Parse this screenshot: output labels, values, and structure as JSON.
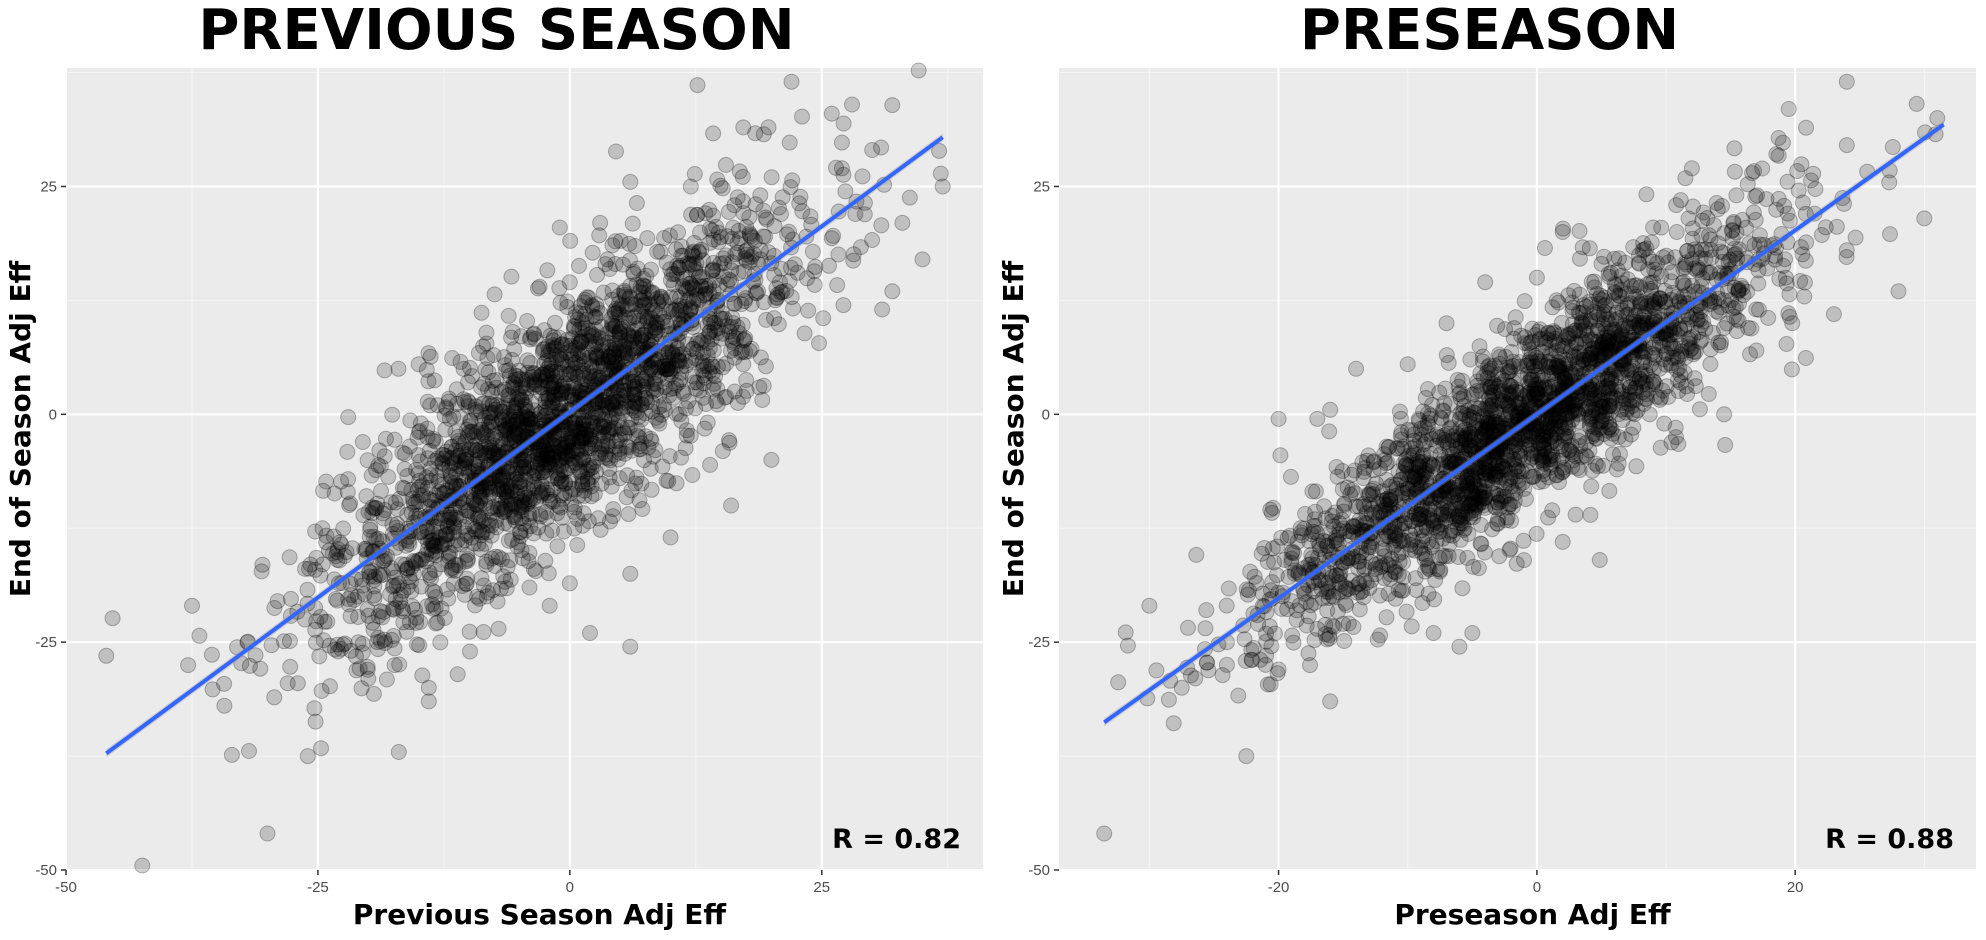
{
  "chart_data": [
    {
      "type": "scatter",
      "title": "PREVIOUS SEASON",
      "xlabel": "Previous Season Adj Eff",
      "ylabel": "End of Season Adj Eff",
      "xlim": [
        -50,
        41
      ],
      "ylim": [
        -50,
        38
      ],
      "x_ticks": [
        -50,
        -25,
        0,
        25
      ],
      "y_ticks": [
        -50,
        -25,
        0,
        25
      ],
      "grid": true,
      "annotation": "R = 0.82",
      "correlation": 0.82,
      "trend_line": {
        "color": "#3366ff",
        "x": [
          -46,
          37
        ],
        "y": [
          -37.2,
          30.4
        ]
      },
      "point_cloud": {
        "count": 2400,
        "x_mean": -1,
        "x_sd": 11.5,
        "slope": 0.815,
        "intercept": 0.3,
        "residual_sd": 6.5
      },
      "points": [
        [
          -46,
          -26.5
        ],
        [
          -30,
          -46
        ],
        [
          -26,
          -37.5
        ],
        [
          -37.5,
          -21
        ],
        [
          -32,
          -25
        ],
        [
          -27,
          -29.5
        ],
        [
          -28,
          -29.5
        ],
        [
          -30.5,
          -16.5
        ],
        [
          -29,
          -20.5
        ],
        [
          -22,
          -0.3
        ],
        [
          -17,
          5
        ],
        [
          -15,
          5.5
        ],
        [
          37,
          25
        ],
        [
          35,
          17
        ],
        [
          33,
          21
        ],
        [
          32,
          13.5
        ],
        [
          28,
          34
        ],
        [
          26,
          33
        ],
        [
          22,
          36.5
        ],
        [
          31,
          11.5
        ],
        [
          12,
          25
        ],
        [
          6,
          25.5
        ],
        [
          -3,
          14
        ],
        [
          0,
          14.5
        ],
        [
          3,
          21
        ],
        [
          -1,
          20.5
        ],
        [
          20,
          -5
        ],
        [
          16,
          -10
        ],
        [
          6,
          -25.5
        ],
        [
          2,
          -24
        ],
        [
          -14,
          -31.5
        ],
        [
          -14,
          -30
        ],
        [
          -20,
          -29
        ],
        [
          -23,
          -26
        ],
        [
          10,
          -13.5
        ],
        [
          6,
          -17.5
        ],
        [
          -4,
          -19
        ],
        [
          -2,
          -21
        ],
        [
          30,
          29
        ],
        [
          27,
          27
        ]
      ]
    },
    {
      "type": "scatter",
      "title": "PRESEASON",
      "xlabel": "Preseason Adj Eff",
      "ylabel": "End of Season Adj Eff",
      "xlim": [
        -37,
        34
      ],
      "ylim": [
        -50,
        38
      ],
      "x_ticks": [
        -20,
        0,
        20
      ],
      "y_ticks": [
        -50,
        -25,
        0,
        25
      ],
      "grid": true,
      "annotation": "R = 0.88",
      "correlation": 0.88,
      "trend_line": {
        "color": "#3366ff",
        "x": [
          -33.5,
          31.5
        ],
        "y": [
          -33.8,
          31.8
        ]
      },
      "point_cloud": {
        "count": 2400,
        "x_mean": -1,
        "x_sd": 9.8,
        "slope": 1.0,
        "intercept": 0.0,
        "residual_sd": 5.0
      },
      "points": [
        [
          -33.5,
          -46
        ],
        [
          -22.5,
          -37.5
        ],
        [
          -30,
          -21
        ],
        [
          -27.5,
          -30
        ],
        [
          -24,
          -25
        ],
        [
          -21,
          -27.5
        ],
        [
          -20,
          -28
        ],
        [
          -16,
          -31.5
        ],
        [
          -19,
          -20.5
        ],
        [
          -20,
          -0.5
        ],
        [
          -17,
          -0.5
        ],
        [
          -16,
          0.5
        ],
        [
          -14,
          5
        ],
        [
          -10,
          5.5
        ],
        [
          -7,
          10
        ],
        [
          -4,
          14.5
        ],
        [
          0,
          15
        ],
        [
          2,
          20
        ],
        [
          5,
          16.5
        ],
        [
          9,
          20.5
        ],
        [
          12,
          27
        ],
        [
          24,
          36.5
        ],
        [
          19.5,
          33.5
        ],
        [
          28,
          13.5
        ],
        [
          30,
          21.5
        ],
        [
          31,
          32.5
        ],
        [
          24,
          18
        ],
        [
          17,
          7
        ],
        [
          23,
          11
        ],
        [
          14.5,
          0
        ],
        [
          -1,
          -16
        ],
        [
          -5,
          -24
        ],
        [
          -6,
          -25.5
        ],
        [
          -8,
          -24
        ],
        [
          3,
          -11
        ],
        [
          2,
          -14
        ],
        [
          -15,
          -23
        ],
        [
          -24,
          -27.5
        ],
        [
          9,
          14.5
        ],
        [
          -11,
          -12
        ]
      ]
    }
  ]
}
